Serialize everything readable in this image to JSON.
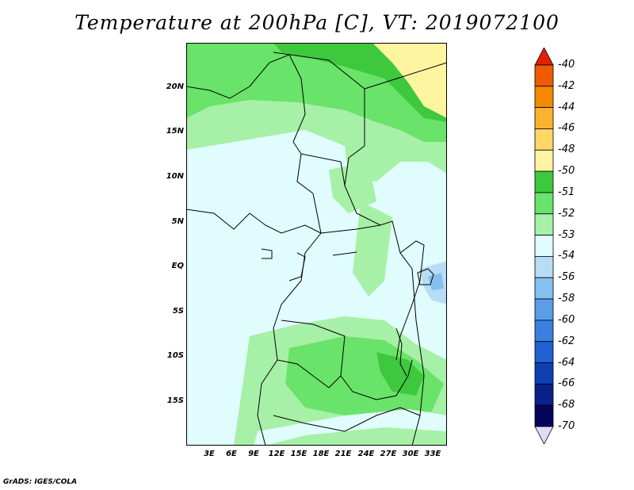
{
  "title": "Temperature at 200hPa [C], VT: 2019072100",
  "credit": "GrADS: IGES/COLA",
  "map": {
    "lat_labels": [
      "20N",
      "15N",
      "10N",
      "5N",
      "EQ",
      "5S",
      "10S",
      "15S"
    ],
    "lon_labels": [
      "3E",
      "6E",
      "9E",
      "12E",
      "15E",
      "18E",
      "21E",
      "24E",
      "27E",
      "30E",
      "33E"
    ]
  },
  "colorbar": {
    "labels": [
      "-40",
      "-42",
      "-44",
      "-46",
      "-48",
      "-50",
      "-51",
      "-52",
      "-53",
      "-54",
      "-56",
      "-58",
      "-60",
      "-62",
      "-64",
      "-66",
      "-68",
      "-70"
    ],
    "colors": [
      "#e02000",
      "#f05a00",
      "#f58a00",
      "#fbb230",
      "#fdd667",
      "#fff5a0",
      "#3ec83e",
      "#69e369",
      "#a7f0a7",
      "#e0fcfc",
      "#b7dcf5",
      "#85bff0",
      "#5a9ee8",
      "#3a80e0",
      "#2060d0",
      "#0e40b5",
      "#0a208a",
      "#050560",
      "#e0dcf7"
    ]
  }
}
